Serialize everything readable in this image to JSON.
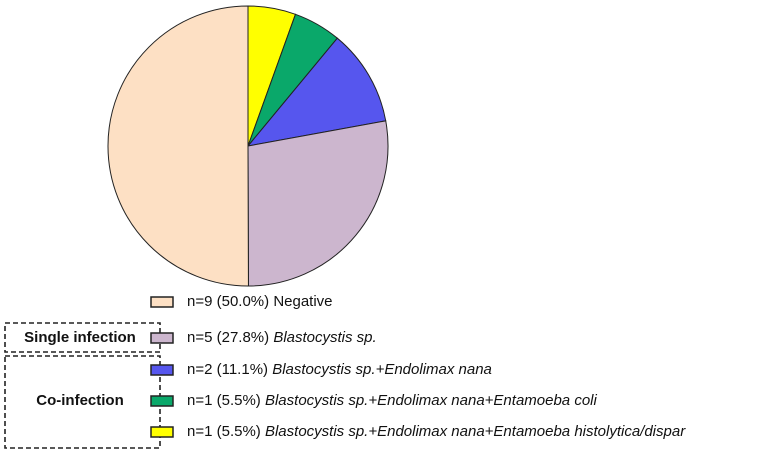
{
  "chart_data": {
    "type": "pie",
    "categories": [
      "Negative",
      "Blastocystis sp.",
      "Blastocystis sp.+Endolimax nana",
      "Blastocystis sp.+Endolimax nana+Entamoeba coli",
      "Blastocystis sp.+Endolimax nana+Entamoeba histolytica/dispar"
    ],
    "values": [
      50.0,
      27.8,
      11.1,
      5.5,
      5.5
    ],
    "counts": [
      9,
      5,
      2,
      1,
      1
    ],
    "value_labels": [
      "n=9 (50.0%)",
      "n=5 (27.8%)",
      "n=2 (11.1%)",
      "n=1 (5.5%)",
      "n=1 (5.5%)"
    ],
    "colors": [
      "#fde0c4",
      "#ccb6ce",
      "#5656ee",
      "#0aa86a",
      "#ffff00"
    ],
    "italic": [
      false,
      true,
      true,
      true,
      true
    ],
    "groups": [
      {
        "label": "Single infection",
        "members": [
          1
        ]
      },
      {
        "label": "Co-infection",
        "members": [
          2,
          3,
          4
        ]
      }
    ]
  }
}
